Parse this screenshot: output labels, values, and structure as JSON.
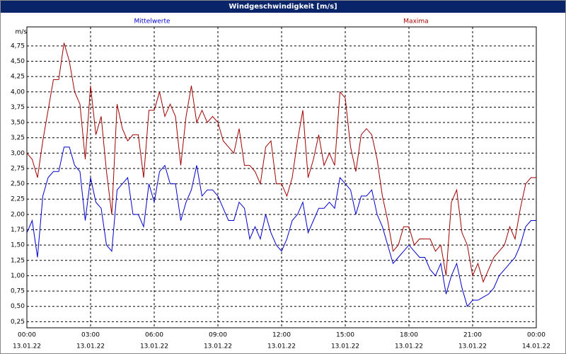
{
  "chart_data": {
    "type": "line",
    "title": "Windgeschwindigkeit [m/s]",
    "ylabel": "m/s",
    "x": [
      0,
      0.25,
      0.5,
      0.75,
      1,
      1.25,
      1.5,
      1.75,
      2,
      2.25,
      2.5,
      2.75,
      3,
      3.25,
      3.5,
      3.75,
      4,
      4.25,
      4.5,
      4.75,
      5,
      5.25,
      5.5,
      5.75,
      6,
      6.25,
      6.5,
      6.75,
      7,
      7.25,
      7.5,
      7.75,
      8,
      8.25,
      8.5,
      8.75,
      9,
      9.25,
      9.5,
      9.75,
      10,
      10.25,
      10.5,
      10.75,
      11,
      11.25,
      11.5,
      11.75,
      12,
      12.25,
      12.5,
      12.75,
      13,
      13.25,
      13.5,
      13.75,
      14,
      14.25,
      14.5,
      14.75,
      15,
      15.25,
      15.5,
      15.75,
      16,
      16.25,
      16.5,
      16.75,
      17,
      17.25,
      17.5,
      17.75,
      18,
      18.25,
      18.5,
      18.75,
      19,
      19.25,
      19.5,
      19.75,
      20,
      20.25,
      20.5,
      20.75,
      21,
      21.25,
      21.5,
      21.75,
      22,
      22.25,
      22.5,
      22.75,
      23,
      23.25,
      23.5,
      23.75,
      24
    ],
    "series": [
      {
        "name": "Mittelwerte",
        "color": "#0000cc",
        "values": [
          1.7,
          1.9,
          1.3,
          2.3,
          2.6,
          2.7,
          2.7,
          3.1,
          3.1,
          2.8,
          2.7,
          1.9,
          2.6,
          2.2,
          2.1,
          1.5,
          1.4,
          2.4,
          2.5,
          2.6,
          2.0,
          2.0,
          1.8,
          2.5,
          2.2,
          2.7,
          2.8,
          2.5,
          2.5,
          1.9,
          2.2,
          2.4,
          2.8,
          2.3,
          2.4,
          2.4,
          2.3,
          2.1,
          1.9,
          1.9,
          2.2,
          2.1,
          1.6,
          1.8,
          1.6,
          2.0,
          1.7,
          1.5,
          1.4,
          1.6,
          1.9,
          2.0,
          2.2,
          1.7,
          1.9,
          2.1,
          2.1,
          2.2,
          2.1,
          2.6,
          2.5,
          2.4,
          2.0,
          2.3,
          2.3,
          2.4,
          2.0,
          1.8,
          1.5,
          1.2,
          1.3,
          1.4,
          1.5,
          1.4,
          1.3,
          1.3,
          1.1,
          1.0,
          1.2,
          0.7,
          1.0,
          1.2,
          0.8,
          0.5,
          0.6,
          0.6,
          0.65,
          0.7,
          0.8,
          1.0,
          1.1,
          1.2,
          1.3,
          1.5,
          1.8,
          1.9,
          1.9
        ]
      },
      {
        "name": "Maxima",
        "color": "#a00000",
        "values": [
          3.0,
          2.9,
          2.6,
          3.2,
          3.7,
          4.2,
          4.2,
          4.8,
          4.5,
          4.0,
          3.8,
          2.9,
          4.1,
          3.3,
          3.6,
          2.7,
          2.0,
          3.8,
          3.4,
          3.2,
          3.3,
          3.3,
          2.6,
          3.7,
          3.7,
          4.0,
          3.6,
          3.8,
          3.6,
          2.8,
          3.6,
          4.1,
          3.5,
          3.7,
          3.5,
          3.6,
          3.5,
          3.2,
          3.1,
          3.0,
          3.4,
          2.8,
          2.8,
          2.7,
          2.5,
          3.1,
          3.2,
          2.5,
          2.5,
          2.3,
          2.6,
          3.2,
          3.7,
          2.6,
          2.9,
          3.3,
          2.8,
          3.0,
          2.8,
          4.0,
          3.9,
          3.1,
          2.7,
          3.3,
          3.4,
          3.3,
          2.9,
          2.3,
          1.9,
          1.4,
          1.5,
          1.8,
          1.8,
          1.5,
          1.6,
          1.6,
          1.6,
          1.4,
          1.5,
          1.0,
          2.2,
          2.4,
          1.7,
          1.5,
          1.0,
          1.2,
          0.9,
          1.1,
          1.3,
          1.4,
          1.5,
          1.8,
          1.6,
          2.1,
          2.5,
          2.6,
          2.6
        ]
      }
    ],
    "xlim": [
      0,
      24
    ],
    "xticks": [
      {
        "value": 0,
        "label": "00:00"
      },
      {
        "value": 3,
        "label": "03:00"
      },
      {
        "value": 6,
        "label": "06:00"
      },
      {
        "value": 9,
        "label": "09:00"
      },
      {
        "value": 12,
        "label": "12:00"
      },
      {
        "value": 15,
        "label": "15:00"
      },
      {
        "value": 18,
        "label": "18:00"
      },
      {
        "value": 21,
        "label": "21:00"
      },
      {
        "value": 24,
        "label": "00:00"
      }
    ],
    "xtick_dates": [
      "13.01.22",
      "13.01.22",
      "13.01.22",
      "13.01.22",
      "13.01.22",
      "13.01.22",
      "13.01.22",
      "13.01.22",
      "14.01.22"
    ],
    "ylim": [
      0.15,
      5.06
    ],
    "yticks": [
      {
        "value": 0.25,
        "label": "0,25"
      },
      {
        "value": 0.5,
        "label": "0,50"
      },
      {
        "value": 0.75,
        "label": "0,75"
      },
      {
        "value": 1,
        "label": "1,00"
      },
      {
        "value": 1.25,
        "label": "1,25"
      },
      {
        "value": 1.5,
        "label": "1,50"
      },
      {
        "value": 1.75,
        "label": "1,75"
      },
      {
        "value": 2,
        "label": "2,00"
      },
      {
        "value": 2.25,
        "label": "2,25"
      },
      {
        "value": 2.5,
        "label": "2,50"
      },
      {
        "value": 2.75,
        "label": "2,75"
      },
      {
        "value": 3,
        "label": "3,00"
      },
      {
        "value": 3.25,
        "label": "3,25"
      },
      {
        "value": 3.5,
        "label": "3,50"
      },
      {
        "value": 3.75,
        "label": "3,75"
      },
      {
        "value": 4,
        "label": "4,00"
      },
      {
        "value": 4.25,
        "label": "4,25"
      },
      {
        "value": 4.5,
        "label": "4,50"
      },
      {
        "value": 4.75,
        "label": "4,75"
      }
    ],
    "grid": true
  }
}
